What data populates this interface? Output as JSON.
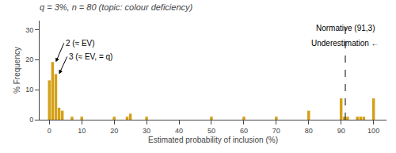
{
  "chart_data": {
    "type": "bar",
    "title": "q = 3%, n = 80 (topic: colour deficiency)",
    "xlabel": "Estimated probability of inclusion (%)",
    "ylabel": "% Frequency",
    "color": "#D4A017",
    "x": [
      0,
      1,
      2,
      3,
      4,
      5,
      6,
      7,
      8,
      9,
      10,
      11,
      12,
      13,
      14,
      15,
      16,
      17,
      18,
      19,
      20,
      21,
      22,
      23,
      24,
      25,
      26,
      27,
      28,
      29,
      30,
      31,
      32,
      33,
      34,
      35,
      36,
      37,
      38,
      39,
      40,
      41,
      42,
      43,
      44,
      45,
      46,
      47,
      48,
      49,
      50,
      51,
      52,
      53,
      54,
      55,
      56,
      57,
      58,
      59,
      60,
      61,
      62,
      63,
      64,
      65,
      66,
      67,
      68,
      69,
      70,
      71,
      72,
      73,
      74,
      75,
      76,
      77,
      78,
      79,
      80,
      81,
      82,
      83,
      84,
      85,
      86,
      87,
      88,
      89,
      90,
      91,
      92,
      93,
      94,
      95,
      96,
      97,
      98,
      99,
      100
    ],
    "values": [
      13.1,
      19.2,
      15.2,
      4.0,
      3.0,
      0.0,
      0.0,
      1.0,
      0.0,
      0.0,
      1.0,
      0.0,
      0.0,
      0.0,
      0.0,
      0.0,
      0.0,
      0.0,
      0.0,
      0.0,
      1.0,
      0.0,
      0.0,
      0.0,
      1.0,
      2.0,
      0.0,
      0.0,
      0.0,
      0.0,
      1.0,
      0.0,
      0.0,
      0.0,
      0.0,
      0.0,
      0.0,
      0.0,
      0.0,
      0.0,
      0.0,
      0.0,
      0.0,
      0.0,
      0.0,
      0.0,
      0.0,
      0.0,
      0.0,
      0.0,
      1.0,
      0.0,
      0.0,
      0.0,
      0.0,
      0.0,
      0.0,
      0.0,
      0.0,
      0.0,
      1.0,
      0.0,
      0.0,
      0.0,
      0.0,
      0.0,
      0.0,
      0.0,
      0.0,
      0.0,
      1.0,
      0.0,
      0.0,
      0.0,
      0.0,
      0.0,
      0.0,
      0.0,
      0.0,
      0.0,
      3.0,
      0.0,
      0.0,
      0.0,
      0.0,
      0.0,
      0.0,
      0.0,
      0.0,
      0.0,
      7.1,
      1.0,
      1.0,
      0.0,
      0.0,
      1.0,
      1.0,
      1.0,
      0.0,
      0.0,
      7.1
    ],
    "xlim": [
      -3,
      104
    ],
    "xticks": [
      0,
      10,
      20,
      30,
      40,
      50,
      60,
      70,
      80,
      90,
      100
    ],
    "ylim": [
      0,
      33
    ],
    "yticks": [
      0,
      10,
      20,
      30
    ],
    "grid": false,
    "vlines": [
      {
        "x": 91.3,
        "line_style": "dashed",
        "color": "black"
      }
    ],
    "annotations": [
      {
        "text": "Normative (91,3)",
        "x": 91.3,
        "y": 30.5
      },
      {
        "text": "Underestimation ←",
        "x": 91.3,
        "y": 25.5
      },
      {
        "text": "2 (≈ EV)",
        "x": 2,
        "y": 19.2,
        "text_x": 4.5,
        "text_y": 25.5
      },
      {
        "text": "3 (≈ EV, = q)",
        "x": 3,
        "y": 15.2,
        "text_x": 5.5,
        "text_y": 21.0
      }
    ]
  }
}
